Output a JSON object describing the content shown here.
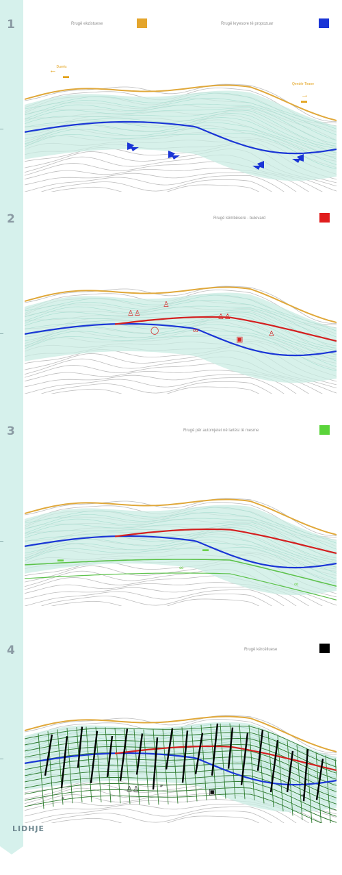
{
  "steps": [
    {
      "number": "1",
      "legend": [
        {
          "label": "Rrugë ekzistuese",
          "color": "#e4a52c"
        },
        {
          "label": "Rrugë kryesore të propozuar",
          "color": "#1a35d6"
        }
      ]
    },
    {
      "number": "2",
      "legend": [
        {
          "label": "Rrugë këmbësore - bulevard",
          "color": "#e01d1d"
        }
      ]
    },
    {
      "number": "3",
      "legend": [
        {
          "label": "Rrugë për automjetet në lartësi të mesme",
          "color": "#5ad43a"
        }
      ]
    },
    {
      "number": "4",
      "legend": [
        {
          "label": "Rrugë kërcëlluese",
          "color": "#000000"
        }
      ]
    }
  ],
  "panel1": {
    "left_label": "Durrës",
    "right_label": "Qendër Tirane"
  },
  "footer": "LIDHJE",
  "colors": {
    "strip": "#d6f1ec",
    "hatch": "#c9ece3",
    "contour": "#bdbdbd"
  },
  "icons": [
    "arrow-icon",
    "walking-icon",
    "bicycle-icon",
    "bench-icon",
    "car-icon",
    "footprint-icon"
  ]
}
